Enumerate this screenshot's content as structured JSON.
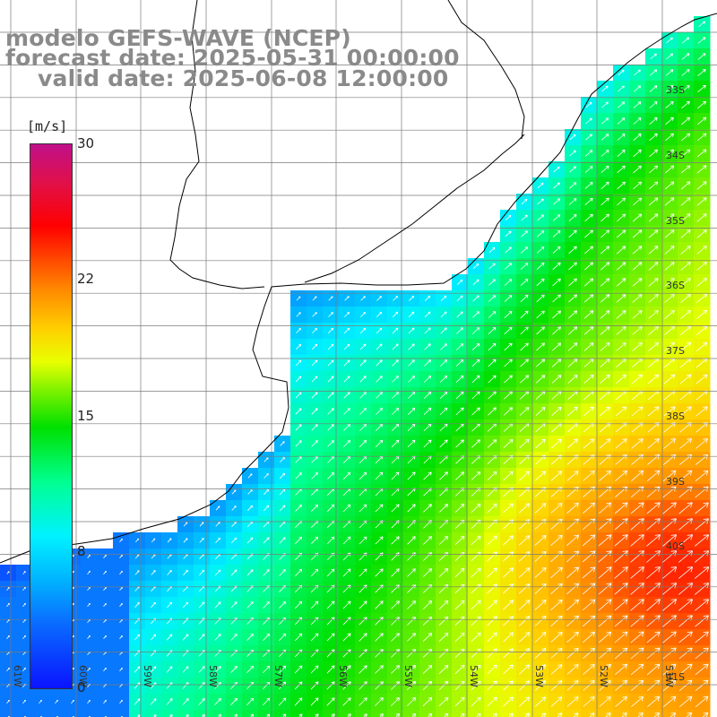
{
  "title": {
    "line1": "modelo GEFS-WAVE (NCEP)",
    "line2": "forecast date: 2025-05-31 00:00:00",
    "line3": "valid date: 2025-06-08 12:00:00"
  },
  "colorbar": {
    "unit": "[m/s]",
    "ticks": [
      "30",
      "22",
      "15",
      "8",
      "0"
    ],
    "tick_values": [
      30,
      22,
      15,
      8,
      0
    ],
    "range": [
      0,
      30
    ],
    "colors": [
      "#0a14ff",
      "#00b4ff",
      "#00f2ff",
      "#00e000",
      "#e8ff00",
      "#ffd000",
      "#ff8c00",
      "#ff0000",
      "#c0108a"
    ]
  },
  "latitude_labels": [
    "33S",
    "34S",
    "35S",
    "36S",
    "37S",
    "38S",
    "39S",
    "40S",
    "41S"
  ],
  "longitude_labels": [
    "61W",
    "60W",
    "59W",
    "58W",
    "57W",
    "56W",
    "55W",
    "54W",
    "53W",
    "52W",
    "51W"
  ],
  "map": {
    "variable": "wind speed",
    "units": "m/s",
    "lon_range": [
      -61.3,
      -50.6
    ],
    "lat_range": [
      -41.3,
      -31.7
    ],
    "gridlines": true,
    "arrow_direction": "toward northeast",
    "land_color": "#ffffff",
    "coastline_color": "#000000"
  }
}
